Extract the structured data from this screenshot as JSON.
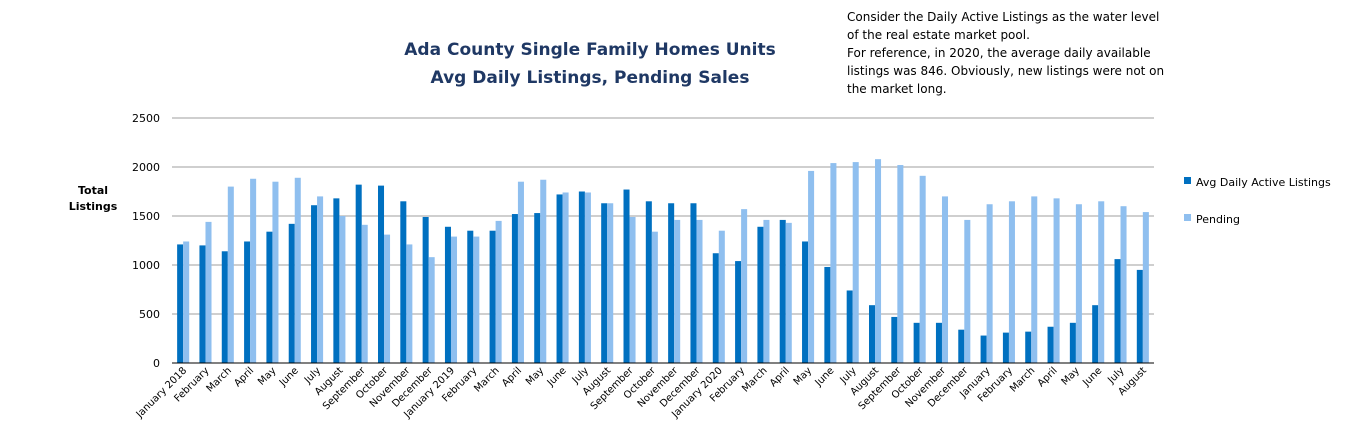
{
  "chart_data": {
    "type": "bar",
    "title_lines": [
      "Ada County Single Family Homes Units",
      "Avg Daily Listings, Pending Sales"
    ],
    "ylabel_lines": [
      "Total",
      "Listings"
    ],
    "xlabel": "",
    "ylim": [
      0,
      2500
    ],
    "yticks": [
      0,
      500,
      1000,
      1500,
      2000,
      2500
    ],
    "grid": true,
    "legend_position": "right",
    "colors": {
      "active": "#0070c0",
      "pending": "#8fbfef"
    },
    "categories": [
      "January 2018",
      "February",
      "March",
      "April",
      "May",
      "June",
      "July",
      "August",
      "September",
      "October",
      "November",
      "December",
      "January 2019",
      "February",
      "March",
      "April",
      "May",
      "June",
      "July",
      "August",
      "September",
      "October",
      "November",
      "December",
      "January 2020",
      "February",
      "March",
      "April",
      "May",
      "June",
      "July",
      "August",
      "September",
      "October",
      "November",
      "December",
      "January",
      "February",
      "March",
      "April",
      "May",
      "June",
      "July",
      "August"
    ],
    "series": [
      {
        "name": "Avg Daily  Active Listings",
        "color": "#0070c0",
        "values": [
          1210,
          1200,
          1140,
          1240,
          1340,
          1420,
          1610,
          1680,
          1820,
          1810,
          1650,
          1490,
          1390,
          1350,
          1350,
          1520,
          1530,
          1720,
          1750,
          1630,
          1770,
          1650,
          1630,
          1630,
          1120,
          1040,
          1390,
          1460,
          1240,
          980,
          740,
          590,
          470,
          410,
          410,
          340,
          280,
          310,
          320,
          370,
          410,
          590,
          1060,
          950
        ]
      },
      {
        "name": "Pending",
        "color": "#8fbfef",
        "values": [
          1240,
          1440,
          1800,
          1880,
          1850,
          1890,
          1700,
          1500,
          1410,
          1310,
          1210,
          1080,
          1290,
          1290,
          1450,
          1850,
          1870,
          1740,
          1740,
          1630,
          1490,
          1340,
          1460,
          1460,
          1350,
          1570,
          1460,
          1430,
          1960,
          2040,
          2050,
          2080,
          2020,
          1910,
          1700,
          1460,
          1620,
          1650,
          1700,
          1680,
          1620,
          1650,
          1600,
          1540
        ]
      }
    ]
  },
  "note_lines": [
    "Consider the Daily Active Listings as the water level",
    "of the real estate market pool.",
    "For reference, in 2020,  the average daily available",
    "listings was 846.   Obviously, new listings were not on",
    "the market long."
  ]
}
